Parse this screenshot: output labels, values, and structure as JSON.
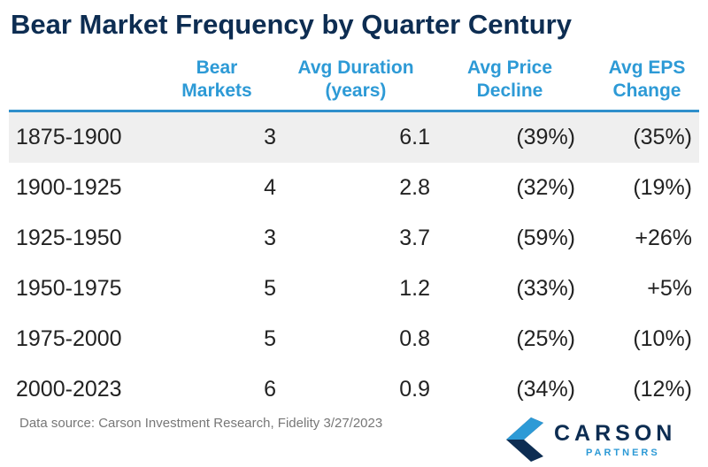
{
  "title": "Bear Market Frequency by Quarter Century",
  "chart_data": {
    "type": "table",
    "columns": [
      "",
      "Bear\nMarkets",
      "Avg Duration\n(years)",
      "Avg Price\nDecline",
      "Avg EPS\nChange"
    ],
    "rows": [
      [
        "1875-1900",
        "3",
        "6.1",
        "(39%)",
        "(35%)"
      ],
      [
        "1900-1925",
        "4",
        "2.8",
        "(32%)",
        "(19%)"
      ],
      [
        "1925-1950",
        "3",
        "3.7",
        "(59%)",
        "+26%"
      ],
      [
        "1950-1975",
        "5",
        "1.2",
        "(33%)",
        "+5%"
      ],
      [
        "1975-2000",
        "5",
        "0.8",
        "(25%)",
        "(10%)"
      ],
      [
        "2000-2023",
        "6",
        "0.9",
        "(34%)",
        "(12%)"
      ]
    ]
  },
  "footer": {
    "source": "Data source: Carson Investment Research, Fidelity   3/27/2023"
  },
  "logo": {
    "word": "CARSON",
    "sub": "PARTNERS",
    "icon": "carson-chevron-icon",
    "colors": {
      "navy": "#0d2d52",
      "blue": "#2d9ad6"
    }
  },
  "colors": {
    "title": "#0d2d52",
    "header": "#2d9ad6",
    "rule": "#2f8fcb",
    "shaded_row": "#efefef",
    "text": "#222222",
    "source": "#777777"
  }
}
